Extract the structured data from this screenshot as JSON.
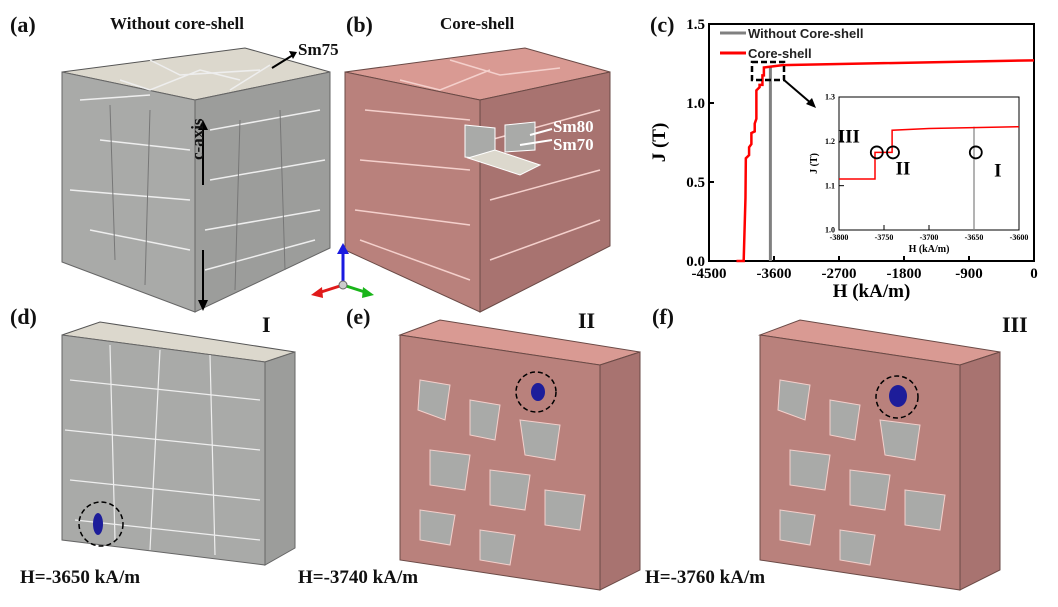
{
  "panels": {
    "a": {
      "tag": "(a)",
      "title": "Without core-shell",
      "annotation": "Sm75",
      "axis_label": "c-axis"
    },
    "b": {
      "tag": "(b)",
      "title": "Core-shell",
      "annotation_1": "Sm80",
      "annotation_2": "Sm70"
    },
    "c": {
      "tag": "(c)"
    },
    "d": {
      "tag": "(d)",
      "marker": "I",
      "field": "H=-3650 kA/m"
    },
    "e": {
      "tag": "(e)",
      "marker": "II",
      "field": "H=-3740 kA/m"
    },
    "f": {
      "tag": "(f)",
      "marker": "III",
      "field": "H=-3760 kA/m"
    }
  },
  "colors": {
    "grain_gray": "#a9aaa8",
    "grain_top_gray": "#d9d6cc",
    "shell_pink": "#b9817c",
    "shell_top": "#d99a93",
    "nucleus": "#1d1d9a",
    "core_shell_line": "#ff0000",
    "without_line": "#808080"
  },
  "chart_data": [
    {
      "type": "line",
      "xlabel": "H (kA/m)",
      "ylabel": "J (T)",
      "xlim": [
        -4500,
        0
      ],
      "ylim": [
        0,
        1.5
      ],
      "xticks": [
        "-4500",
        "-3600",
        "-2700",
        "-1800",
        "-900",
        "0"
      ],
      "yticks": [
        "0.0",
        "0.5",
        "1.0",
        "1.5"
      ],
      "legend": "top-left",
      "series": [
        {
          "name": "Without Core-shell",
          "color": "#808080",
          "x": [
            -3650,
            -3650
          ],
          "y": [
            0,
            1.23
          ]
        },
        {
          "name": "Core-shell",
          "color": "#ff0000",
          "x": [
            -4120,
            -4020,
            -3995,
            -3990,
            -3945,
            -3945,
            -3913,
            -3913,
            -3867,
            -3867,
            -3844,
            -3844,
            -3800,
            -3800,
            -3760,
            -3760,
            -3740,
            -3740,
            -3480,
            0
          ],
          "y": [
            0,
            0,
            0.4,
            0.65,
            0.67,
            0.72,
            0.74,
            0.81,
            0.82,
            0.87,
            0.9,
            1.08,
            1.1,
            1.115,
            1.115,
            1.175,
            1.175,
            1.225,
            1.24,
            1.27
          ]
        }
      ]
    },
    {
      "type": "line",
      "xlabel": "H (kA/m)",
      "ylabel": "J (T)",
      "xlim": [
        -3800,
        -3600
      ],
      "ylim": [
        1.0,
        1.3
      ],
      "xticks": [
        "-3800",
        "-3750",
        "-3700",
        "-3650",
        "-3600"
      ],
      "yticks": [
        "1.0",
        "1.1",
        "1.2",
        "1.3"
      ],
      "series": [
        {
          "color": "#808080",
          "x": [
            -3650,
            -3650
          ],
          "y": [
            1.0,
            1.233
          ]
        },
        {
          "color": "#ff0000",
          "x": [
            -3800,
            -3760,
            -3760,
            -3741,
            -3741,
            -3700,
            -3600
          ],
          "y": [
            1.115,
            1.115,
            1.175,
            1.175,
            1.225,
            1.229,
            1.233
          ]
        }
      ],
      "annotations": [
        {
          "text": "III",
          "x": -3758,
          "y": 1.175
        },
        {
          "text": "II",
          "x": -3740,
          "y": 1.175
        },
        {
          "text": "I",
          "x": -3648,
          "y": 1.175
        }
      ]
    }
  ]
}
